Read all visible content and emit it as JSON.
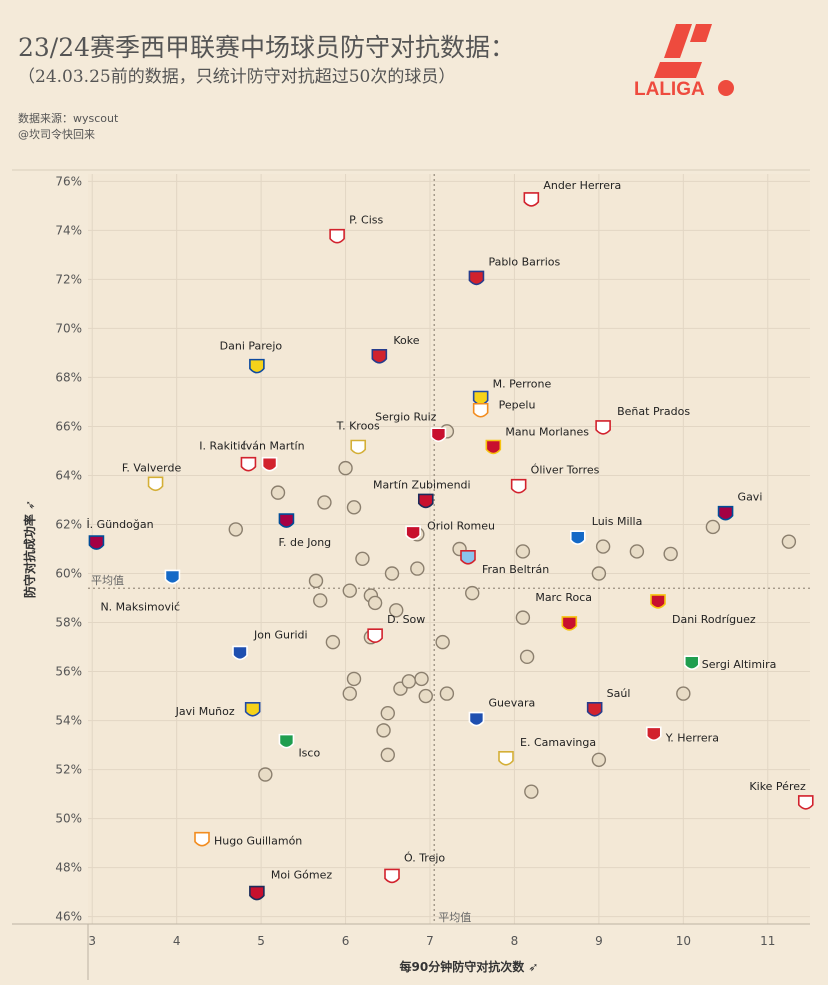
{
  "header": {
    "title": "23/24赛季西甲联赛中场球员防守对抗数据：",
    "subtitle": "（24.03.25前的数据，只统计防守对抗超过50次的球员）",
    "source_line": "数据来源：wyscout",
    "author_line": "@坎司令快回来"
  },
  "logo": {
    "text": "LALIGA",
    "color": "#ee4b3e"
  },
  "chart_data": {
    "type": "scatter",
    "xlabel": "每90分钟防守对抗次数",
    "ylabel": "防守对抗成功率",
    "xlim": [
      2.95,
      11.5
    ],
    "ylim": [
      45.7,
      76.3
    ],
    "x_ticks": [
      3,
      4,
      5,
      6,
      7,
      8,
      9,
      10,
      11
    ],
    "y_ticks": [
      "46%",
      "48%",
      "50%",
      "52%",
      "54%",
      "56%",
      "58%",
      "60%",
      "62%",
      "64%",
      "66%",
      "68%",
      "70%",
      "72%",
      "74%",
      "76%"
    ],
    "grid": true,
    "mean_x": 7.05,
    "mean_y": 59.4,
    "mean_label": "平均值",
    "points": [
      {
        "name": "Ander Herrera",
        "x": 8.2,
        "y": 75.2,
        "club": "Athletic Club"
      },
      {
        "name": "P. Ciss",
        "x": 5.9,
        "y": 73.7,
        "club": "Rayo Vallecano"
      },
      {
        "name": "Pablo Barrios",
        "x": 7.55,
        "y": 72.0,
        "club": "Atlético Madrid"
      },
      {
        "name": "Koke",
        "x": 6.4,
        "y": 68.8,
        "club": "Atlético Madrid"
      },
      {
        "name": "Dani Parejo",
        "x": 4.95,
        "y": 68.4,
        "club": "Villarreal"
      },
      {
        "name": "M. Perrone",
        "x": 7.6,
        "y": 67.1,
        "club": "Las Palmas"
      },
      {
        "name": "Pepelu",
        "x": 7.6,
        "y": 66.6,
        "club": "Valencia"
      },
      {
        "name": "Sergio Ruiz",
        "x": 7.1,
        "y": 65.6,
        "club": "Granada"
      },
      {
        "name": "Beñat Prados",
        "x": 9.05,
        "y": 65.9,
        "club": "Athletic Club"
      },
      {
        "name": "Manu Morlanes",
        "x": 7.75,
        "y": 65.1,
        "club": "Mallorca"
      },
      {
        "name": "T. Kroos",
        "x": 6.15,
        "y": 65.1,
        "club": "Real Madrid"
      },
      {
        "name": "Iván Martín",
        "x": 5.1,
        "y": 64.4,
        "club": "Girona"
      },
      {
        "name": "I. Rakitić",
        "x": 4.85,
        "y": 64.4,
        "club": "Sevilla"
      },
      {
        "name": "F. Valverde",
        "x": 3.75,
        "y": 63.6,
        "club": "Real Madrid"
      },
      {
        "name": "Óliver Torres",
        "x": 8.05,
        "y": 63.5,
        "club": "Sevilla"
      },
      {
        "name": "Martín Zubimendi",
        "x": 6.95,
        "y": 62.9,
        "club": "Osasuna"
      },
      {
        "name": "Gavi",
        "x": 10.5,
        "y": 62.4,
        "club": "Barcelona"
      },
      {
        "name": "Luis Milla",
        "x": 8.75,
        "y": 61.4,
        "club": "Getafe"
      },
      {
        "name": "İ. Gündoğan",
        "x": 3.05,
        "y": 61.2,
        "club": "Barcelona"
      },
      {
        "name": "F. de Jong",
        "x": 5.3,
        "y": 62.1,
        "club": "Barcelona"
      },
      {
        "name": "Oriol Romeu",
        "x": 6.8,
        "y": 61.6,
        "club": "Granada"
      },
      {
        "name": "Fran Beltrán",
        "x": 7.45,
        "y": 60.6,
        "club": "Celta Vigo"
      },
      {
        "name": "N. Maksimović",
        "x": 3.95,
        "y": 59.8,
        "club": "Getafe"
      },
      {
        "name": "Marc Roca",
        "x": 8.65,
        "y": 57.9,
        "club": "Mallorca"
      },
      {
        "name": "Dani Rodríguez",
        "x": 9.7,
        "y": 58.8,
        "club": "Mallorca"
      },
      {
        "name": "Jon Guridi",
        "x": 4.75,
        "y": 56.7,
        "club": "Alavés"
      },
      {
        "name": "D. Sow",
        "x": 6.35,
        "y": 57.4,
        "club": "Sevilla"
      },
      {
        "name": "Sergi Altimira",
        "x": 10.1,
        "y": 56.3,
        "club": "Real Betis"
      },
      {
        "name": "Saúl",
        "x": 8.95,
        "y": 54.4,
        "club": "Atlético Madrid"
      },
      {
        "name": "Guevara",
        "x": 7.55,
        "y": 54.0,
        "club": "Alavés"
      },
      {
        "name": "Javi Muñoz",
        "x": 4.9,
        "y": 54.4,
        "club": "Las Palmas"
      },
      {
        "name": "E. Camavinga",
        "x": 7.9,
        "y": 52.4,
        "club": "Real Madrid"
      },
      {
        "name": "Y. Herrera",
        "x": 9.65,
        "y": 53.4,
        "club": "Girona"
      },
      {
        "name": "Isco",
        "x": 5.3,
        "y": 53.1,
        "club": "Real Betis"
      },
      {
        "name": "Kike Pérez",
        "x": 11.45,
        "y": 50.6,
        "club": "Rayo Vallecano"
      },
      {
        "name": "Hugo Guillamón",
        "x": 4.3,
        "y": 49.1,
        "club": "Valencia"
      },
      {
        "name": "Ó. Trejo",
        "x": 6.55,
        "y": 47.6,
        "club": "Rayo Vallecano"
      },
      {
        "name": "Moi Gómez",
        "x": 4.95,
        "y": 46.9,
        "club": "Osasuna"
      }
    ],
    "unlabeled_points": [
      {
        "x": 4.7,
        "y": 61.8
      },
      {
        "x": 5.2,
        "y": 63.3
      },
      {
        "x": 5.75,
        "y": 62.9
      },
      {
        "x": 6.0,
        "y": 64.3
      },
      {
        "x": 6.1,
        "y": 62.7
      },
      {
        "x": 6.2,
        "y": 60.6
      },
      {
        "x": 6.55,
        "y": 60.0
      },
      {
        "x": 6.85,
        "y": 60.2
      },
      {
        "x": 6.85,
        "y": 61.6
      },
      {
        "x": 6.6,
        "y": 58.5
      },
      {
        "x": 5.65,
        "y": 59.7
      },
      {
        "x": 5.7,
        "y": 58.9
      },
      {
        "x": 6.05,
        "y": 59.3
      },
      {
        "x": 6.3,
        "y": 59.1
      },
      {
        "x": 6.35,
        "y": 58.8
      },
      {
        "x": 7.2,
        "y": 65.8
      },
      {
        "x": 7.35,
        "y": 61.0
      },
      {
        "x": 7.5,
        "y": 59.2
      },
      {
        "x": 8.1,
        "y": 60.9
      },
      {
        "x": 8.1,
        "y": 58.2
      },
      {
        "x": 8.15,
        "y": 56.6
      },
      {
        "x": 9.05,
        "y": 61.1
      },
      {
        "x": 9.0,
        "y": 60.0
      },
      {
        "x": 9.45,
        "y": 60.9
      },
      {
        "x": 9.85,
        "y": 60.8
      },
      {
        "x": 10.35,
        "y": 61.9
      },
      {
        "x": 11.25,
        "y": 61.3
      },
      {
        "x": 5.85,
        "y": 57.2
      },
      {
        "x": 6.3,
        "y": 57.4
      },
      {
        "x": 7.15,
        "y": 57.2
      },
      {
        "x": 6.1,
        "y": 55.7
      },
      {
        "x": 6.05,
        "y": 55.1
      },
      {
        "x": 6.65,
        "y": 55.3
      },
      {
        "x": 6.75,
        "y": 55.6
      },
      {
        "x": 6.9,
        "y": 55.7
      },
      {
        "x": 6.95,
        "y": 55.0
      },
      {
        "x": 6.5,
        "y": 54.3
      },
      {
        "x": 6.45,
        "y": 53.6
      },
      {
        "x": 6.5,
        "y": 52.6
      },
      {
        "x": 5.05,
        "y": 51.8
      },
      {
        "x": 7.2,
        "y": 55.1
      },
      {
        "x": 8.2,
        "y": 51.1
      },
      {
        "x": 9.0,
        "y": 52.4
      },
      {
        "x": 10.0,
        "y": 55.1
      }
    ]
  }
}
